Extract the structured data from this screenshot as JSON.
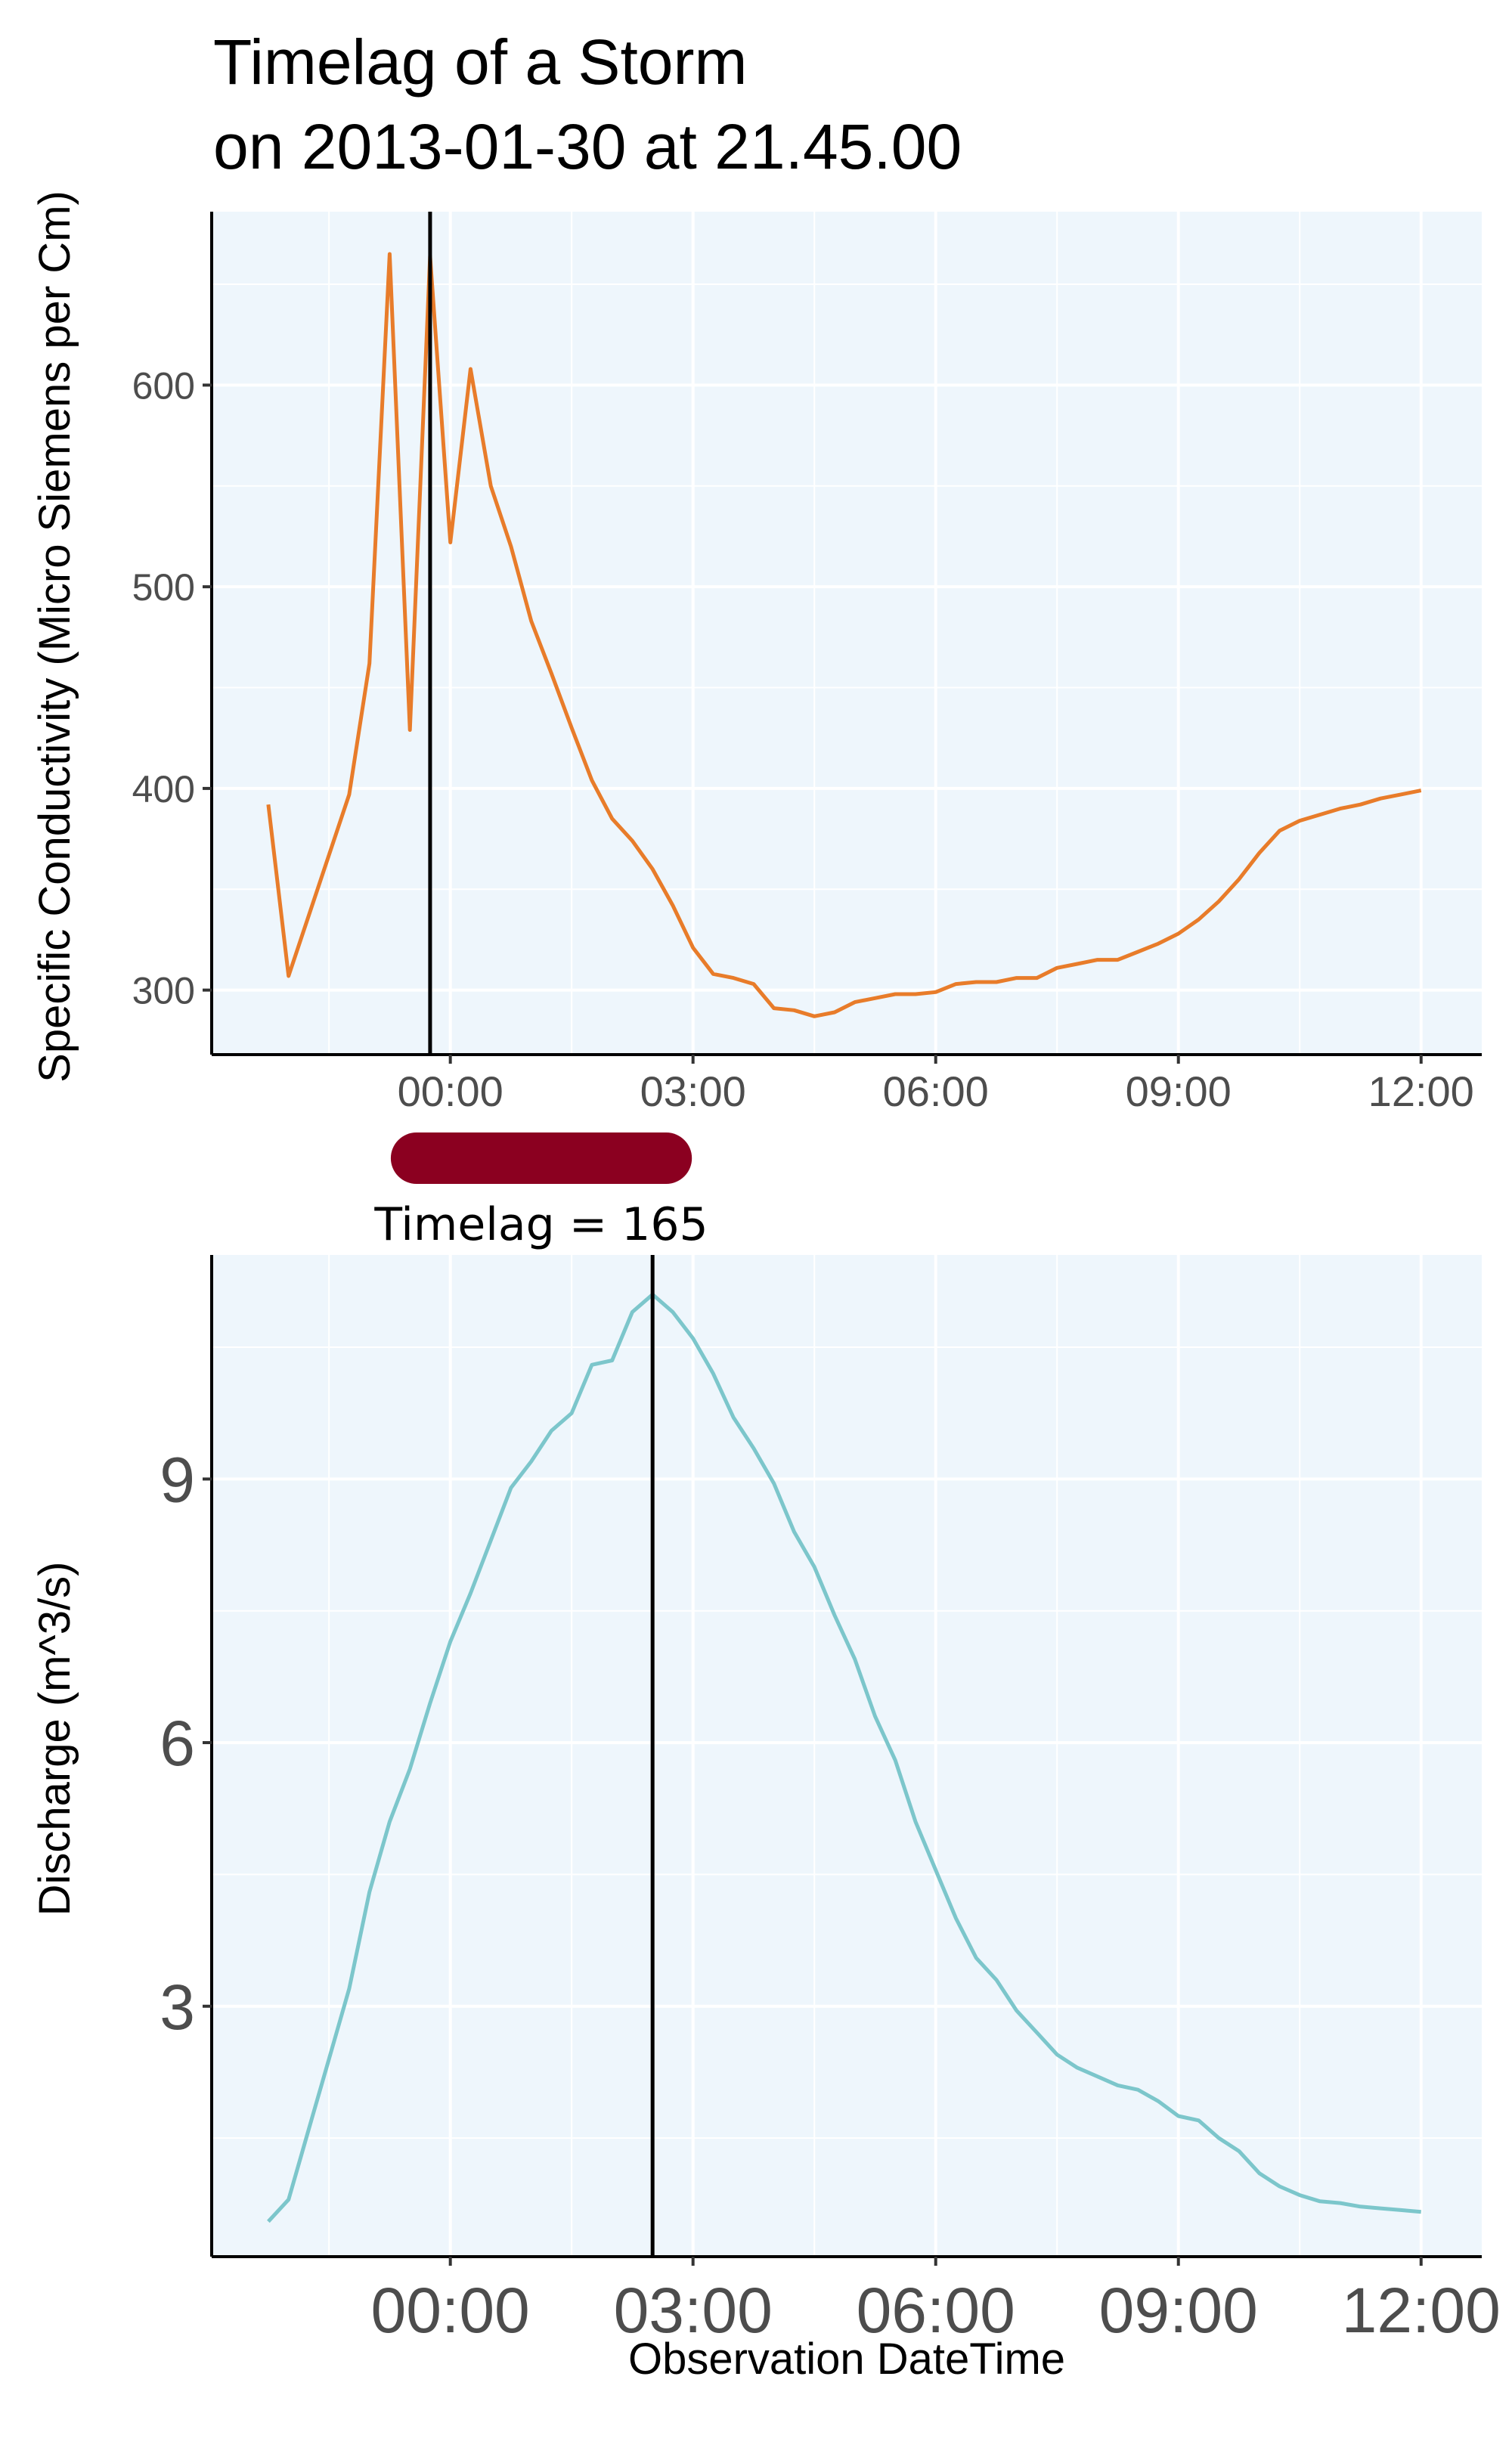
{
  "title_line1": "Timelag of a Storm",
  "title_line2": "on 2013-01-30 at 21.45.00",
  "timelag_label": "Timelag = 165",
  "colors": {
    "panel_bg": "#eef6fc",
    "grid": "#ffffff",
    "conductivity_line": "#e87c2a",
    "discharge_line": "#7cc6cb",
    "timelag_bar": "#8b0020",
    "marker": "#000000"
  },
  "chart_data": [
    {
      "type": "line",
      "ylabel": "Specific Conductivity (Micro Siemens per Cm)",
      "xlabel": "",
      "x_tick_labels": [
        "00:00",
        "03:00",
        "06:00",
        "09:00",
        "12:00"
      ],
      "x_tick_values": [
        0,
        3,
        6,
        9,
        12
      ],
      "y_ticks": [
        300,
        400,
        500,
        600
      ],
      "xlim": [
        -2.95,
        12.75
      ],
      "ylim": [
        268,
        686
      ],
      "marker_time": -0.25,
      "series": [
        {
          "x": [
            -2.25,
            -2.0,
            -1.25,
            -1.0,
            -0.75,
            -0.5,
            -0.25,
            0.0,
            0.25,
            0.5,
            0.75,
            1.0,
            1.25,
            1.5,
            1.75,
            2.0,
            2.25,
            2.5,
            2.75,
            3.0,
            3.25,
            3.5,
            3.75,
            4.0,
            4.25,
            4.5,
            4.75,
            5.0,
            5.25,
            5.5,
            5.75,
            6.0,
            6.25,
            6.5,
            6.75,
            7.0,
            7.25,
            7.5,
            7.75,
            8.0,
            8.25,
            8.5,
            8.75,
            9.0,
            9.25,
            9.5,
            9.75,
            10.0,
            10.25,
            10.5,
            10.75,
            11.0,
            11.25,
            11.5,
            11.75,
            12.0
          ],
          "values": [
            392,
            307,
            397,
            462,
            665,
            429,
            664,
            522,
            608,
            550,
            520,
            483,
            457,
            430,
            404,
            385,
            374,
            360,
            342,
            321,
            308,
            306,
            303,
            291,
            290,
            287,
            289,
            294,
            296,
            298,
            298,
            299,
            303,
            304,
            304,
            306,
            306,
            311,
            313,
            315,
            315,
            319,
            323,
            328,
            335,
            344,
            355,
            368,
            379,
            384,
            387,
            390,
            392,
            395,
            397,
            399
          ]
        }
      ]
    },
    {
      "type": "line",
      "ylabel": "Discharge (m^3/s)",
      "xlabel": "Observation DateTime",
      "x_tick_labels": [
        "00:00",
        "03:00",
        "06:00",
        "09:00",
        "12:00"
      ],
      "x_tick_values": [
        0,
        3,
        6,
        9,
        12
      ],
      "y_ticks": [
        3,
        6,
        9
      ],
      "xlim": [
        -2.95,
        12.75
      ],
      "ylim": [
        0.15,
        11.55
      ],
      "marker_time": 2.5,
      "series": [
        {
          "x": [
            -2.25,
            -2.0,
            -1.75,
            -1.5,
            -1.25,
            -1.0,
            -0.75,
            -0.5,
            -0.25,
            0.0,
            0.25,
            0.5,
            0.75,
            1.0,
            1.25,
            1.5,
            1.75,
            2.0,
            2.25,
            2.5,
            2.75,
            3.0,
            3.25,
            3.5,
            3.75,
            4.0,
            4.25,
            4.5,
            4.75,
            5.0,
            5.25,
            5.5,
            5.75,
            6.0,
            6.25,
            6.5,
            6.75,
            7.0,
            7.25,
            7.5,
            7.75,
            8.0,
            8.25,
            8.5,
            8.75,
            9.0,
            9.25,
            9.5,
            9.75,
            10.0,
            10.25,
            10.5,
            10.75,
            11.0,
            11.25,
            11.5,
            11.75,
            12.0
          ],
          "values": [
            0.55,
            0.8,
            1.6,
            2.4,
            3.2,
            4.3,
            5.1,
            5.7,
            6.45,
            7.15,
            7.7,
            8.3,
            8.9,
            9.2,
            9.55,
            9.75,
            10.3,
            10.35,
            10.9,
            11.1,
            10.9,
            10.6,
            10.2,
            9.7,
            9.35,
            8.95,
            8.4,
            8.0,
            7.45,
            6.95,
            6.3,
            5.8,
            5.1,
            4.55,
            4.0,
            3.55,
            3.3,
            2.95,
            2.7,
            2.45,
            2.3,
            2.2,
            2.1,
            2.05,
            1.92,
            1.75,
            1.7,
            1.5,
            1.35,
            1.1,
            0.95,
            0.85,
            0.78,
            0.76,
            0.72,
            0.7,
            0.68,
            0.66
          ]
        }
      ]
    }
  ]
}
